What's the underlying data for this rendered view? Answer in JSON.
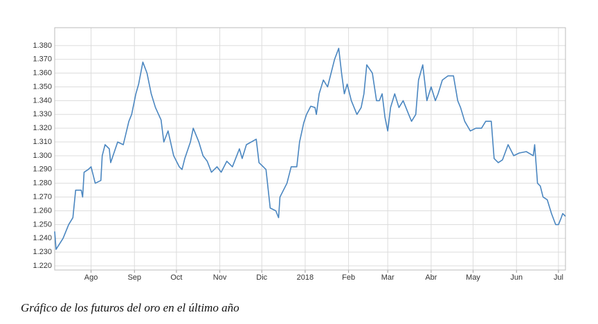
{
  "chart_data": {
    "type": "line",
    "caption": "Gráfico de los futuros del oro en el último año",
    "xlim": [
      0,
      365
    ],
    "ylim": [
      1217,
      1393
    ],
    "xticks": [
      {
        "value": 26,
        "label": "Ago"
      },
      {
        "value": 57,
        "label": "Sep"
      },
      {
        "value": 87,
        "label": "Oct"
      },
      {
        "value": 118,
        "label": "Nov"
      },
      {
        "value": 148,
        "label": "Dic"
      },
      {
        "value": 179,
        "label": "2018"
      },
      {
        "value": 210,
        "label": "Feb"
      },
      {
        "value": 238,
        "label": "Mar"
      },
      {
        "value": 269,
        "label": "Abr"
      },
      {
        "value": 299,
        "label": "May"
      },
      {
        "value": 330,
        "label": "Jun"
      },
      {
        "value": 360,
        "label": "Jul"
      }
    ],
    "yticks": [
      {
        "value": 1220,
        "label": "1.220"
      },
      {
        "value": 1230,
        "label": "1.230"
      },
      {
        "value": 1240,
        "label": "1.240"
      },
      {
        "value": 1250,
        "label": "1.250"
      },
      {
        "value": 1260,
        "label": "1.260"
      },
      {
        "value": 1270,
        "label": "1.270"
      },
      {
        "value": 1280,
        "label": "1.280"
      },
      {
        "value": 1290,
        "label": "1.290"
      },
      {
        "value": 1300,
        "label": "1.300"
      },
      {
        "value": 1310,
        "label": "1.310"
      },
      {
        "value": 1320,
        "label": "1.320"
      },
      {
        "value": 1330,
        "label": "1.330"
      },
      {
        "value": 1340,
        "label": "1.340"
      },
      {
        "value": 1350,
        "label": "1.350"
      },
      {
        "value": 1360,
        "label": "1.360"
      },
      {
        "value": 1370,
        "label": "1.370"
      },
      {
        "value": 1380,
        "label": "1.380"
      }
    ],
    "grid": true,
    "series": [
      {
        "color": "#4a86c0",
        "x": [
          0,
          1,
          6,
          10,
          13,
          14,
          15,
          19,
          20,
          21,
          24,
          26,
          29,
          33,
          34,
          36,
          39,
          40,
          45,
          49,
          53,
          55,
          58,
          60,
          63,
          66,
          69,
          72,
          76,
          78,
          81,
          85,
          89,
          91,
          93,
          97,
          99,
          103,
          106,
          109,
          112,
          116,
          119,
          123,
          127,
          132,
          134,
          137,
          144,
          146,
          151,
          154,
          158,
          160,
          161,
          166,
          169,
          173,
          175,
          178,
          180,
          183,
          186,
          187,
          189,
          192,
          195,
          200,
          203,
          205,
          207,
          209,
          212,
          216,
          219,
          221,
          223,
          227,
          230,
          232,
          234,
          236,
          238,
          240,
          243,
          246,
          249,
          253,
          255,
          258,
          260,
          263,
          266,
          269,
          272,
          274,
          277,
          281,
          285,
          288,
          290,
          293,
          297,
          301,
          305,
          308,
          312,
          314,
          317,
          320,
          324,
          328,
          332,
          337,
          342,
          343,
          345,
          347,
          349,
          352,
          355,
          358,
          360,
          362,
          363,
          365
        ],
        "values": [
          1245,
          1232,
          1240,
          1250,
          1255,
          1265,
          1275,
          1275,
          1270,
          1288,
          1290,
          1292,
          1280,
          1282,
          1300,
          1308,
          1305,
          1295,
          1310,
          1308,
          1325,
          1330,
          1345,
          1352,
          1368,
          1360,
          1345,
          1335,
          1326,
          1310,
          1318,
          1300,
          1292,
          1290,
          1298,
          1310,
          1320,
          1310,
          1300,
          1296,
          1288,
          1292,
          1288,
          1296,
          1292,
          1305,
          1298,
          1308,
          1312,
          1295,
          1290,
          1262,
          1260,
          1255,
          1270,
          1280,
          1292,
          1292,
          1310,
          1324,
          1330,
          1336,
          1335,
          1330,
          1345,
          1355,
          1350,
          1370,
          1378,
          1360,
          1345,
          1352,
          1340,
          1330,
          1335,
          1345,
          1366,
          1360,
          1340,
          1340,
          1345,
          1328,
          1318,
          1335,
          1345,
          1335,
          1340,
          1330,
          1325,
          1330,
          1355,
          1366,
          1340,
          1350,
          1340,
          1345,
          1355,
          1358,
          1358,
          1340,
          1335,
          1325,
          1318,
          1320,
          1320,
          1325,
          1325,
          1298,
          1295,
          1297,
          1308,
          1300,
          1302,
          1303,
          1300,
          1308,
          1280,
          1278,
          1270,
          1268,
          1258,
          1250,
          1250,
          1255,
          1258,
          1256
        ]
      }
    ]
  }
}
